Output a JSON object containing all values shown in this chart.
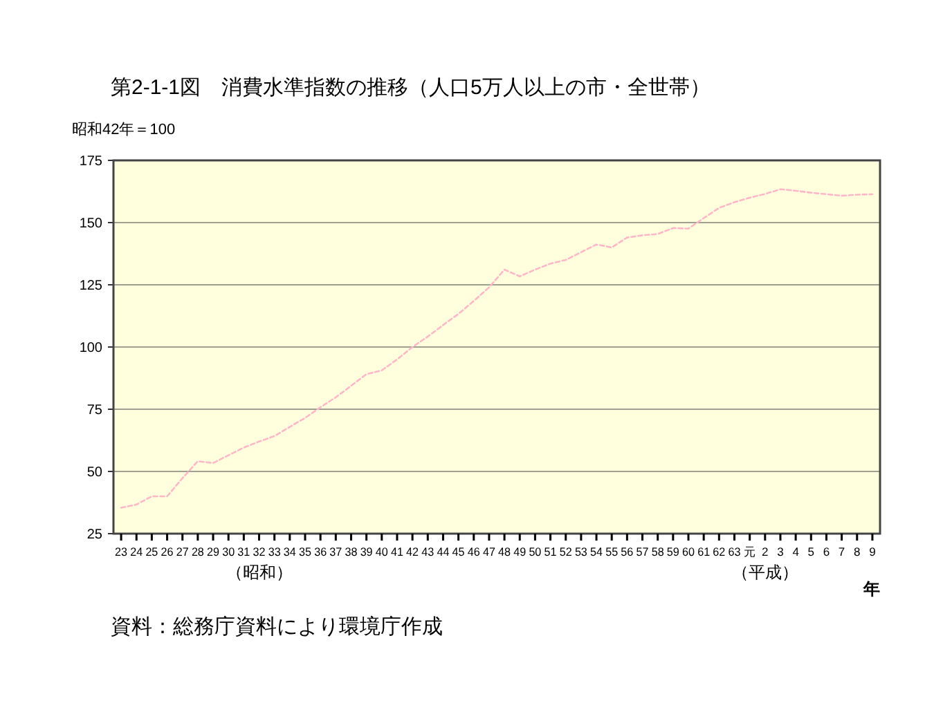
{
  "chart_data": {
    "type": "line",
    "title": "第2-1-1図　消費水準指数の推移（人口5万人以上の市・全世帯）",
    "ylabel": "昭和42年＝100",
    "xlabel": "年",
    "categories": [
      "23",
      "24",
      "25",
      "26",
      "27",
      "28",
      "29",
      "30",
      "31",
      "32",
      "33",
      "34",
      "35",
      "36",
      "37",
      "38",
      "39",
      "40",
      "41",
      "42",
      "43",
      "44",
      "45",
      "46",
      "47",
      "48",
      "49",
      "50",
      "51",
      "52",
      "53",
      "54",
      "55",
      "56",
      "57",
      "58",
      "59",
      "60",
      "61",
      "62",
      "63",
      "元",
      "2",
      "3",
      "4",
      "5",
      "6",
      "7",
      "8",
      "9"
    ],
    "series": [
      {
        "color": "#ffb6c8",
        "values": [
          35.4,
          36.7,
          40,
          40,
          47.3,
          54.1,
          53.4,
          56.5,
          59.6,
          62,
          64.2,
          67.9,
          71.5,
          75.8,
          79.8,
          84.4,
          89.1,
          90.6,
          95,
          100,
          104.2,
          108.8,
          113.3,
          118.5,
          124,
          131.1,
          128.4,
          131.1,
          133.5,
          135,
          138.1,
          141.2,
          140,
          144,
          144.9,
          145.4,
          147.8,
          147.6,
          151.8,
          155.9,
          158.2,
          160,
          161.5,
          163.4,
          162.8,
          162,
          161.4,
          160.8,
          161.2,
          161.4
        ]
      }
    ],
    "ylim": [
      25,
      175
    ],
    "yticks": [
      25,
      50,
      75,
      100,
      125,
      150,
      175
    ],
    "grid": "y",
    "marker": "none",
    "line_style": "dashed",
    "annotations": [
      "（昭和）",
      "（平成）",
      "資料：総務庁資料により環境庁作成"
    ]
  }
}
